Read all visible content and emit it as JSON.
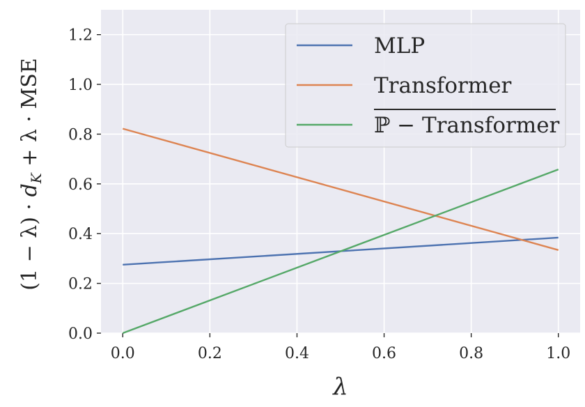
{
  "chart_data": {
    "type": "line",
    "title": "",
    "xlabel": "λ",
    "ylabel": "(1 − λ) · d_K + λ · MSE",
    "ylabel_parts": [
      "(1 − λ) · ",
      "d",
      "K",
      " + λ · MSE"
    ],
    "xlim": [
      -0.05,
      1.05
    ],
    "ylim": [
      0.0,
      1.3
    ],
    "xticks": [
      0.0,
      0.2,
      0.4,
      0.6,
      0.8,
      1.0
    ],
    "xtick_labels": [
      "0.0",
      "0.2",
      "0.4",
      "0.6",
      "0.8",
      "1.0"
    ],
    "yticks": [
      0.0,
      0.2,
      0.4,
      0.6,
      0.8,
      1.0,
      1.2
    ],
    "ytick_labels": [
      "0.0",
      "0.2",
      "0.4",
      "0.6",
      "0.8",
      "1.0",
      "1.2"
    ],
    "grid": true,
    "legend_position": "top-right",
    "x": [
      0.0,
      1.0
    ],
    "series": [
      {
        "name": "MLP",
        "values": [
          0.275,
          0.384
        ],
        "color": "#4c72b0"
      },
      {
        "name": "Transformer",
        "values": [
          0.822,
          0.334
        ],
        "color": "#dd8452"
      },
      {
        "name": "ℙ − Transformer",
        "values": [
          0.0,
          0.658
        ],
        "color": "#55a868",
        "overline": true
      }
    ]
  }
}
